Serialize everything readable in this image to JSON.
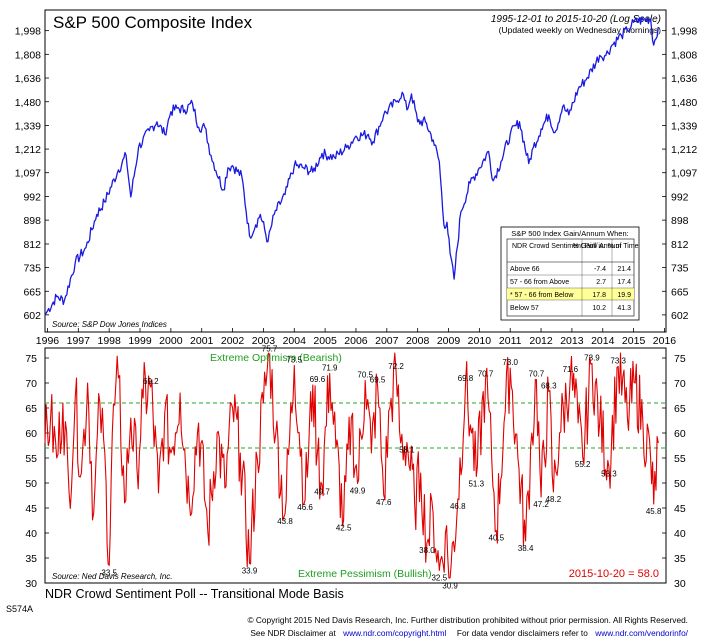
{
  "chart_data": [
    {
      "type": "line",
      "title": "S&P 500 Composite Index",
      "subtitle": "1995-12-01 to 2015-10-20 (Log Scale)",
      "subtitle2": "(Updated weekly on Wednesday mornings)",
      "source": "Source:  S&P Dow Jones Indices",
      "y_scale": "log",
      "ylim": [
        560,
        2180
      ],
      "y_ticks": [
        "602",
        "665",
        "735",
        "812",
        "898",
        "992",
        "1,097",
        "1,212",
        "1,339",
        "1,480",
        "1,636",
        "1,808",
        "1,998"
      ],
      "x_ticks": [
        "1996",
        "1997",
        "1998",
        "1999",
        "2000",
        "2001",
        "2002",
        "2003",
        "2004",
        "2005",
        "2006",
        "2007",
        "2008",
        "2009",
        "2010",
        "2011",
        "2012",
        "2013",
        "2014",
        "2015",
        "2016"
      ],
      "xlim": [
        1995.92,
        2016.05
      ],
      "line_color": "#1a1adf",
      "series": [
        {
          "x": [
            1995.92,
            1996.0,
            1996.3,
            1996.55,
            1996.9,
            1997.25,
            1997.6,
            1997.85,
            1998.3,
            1998.55,
            1998.7,
            1998.95,
            1999.3,
            1999.55,
            1999.8,
            2000.0,
            2000.2,
            2000.45,
            2000.7,
            2000.9,
            2001.1,
            2001.3,
            2001.7,
            2001.85,
            2002.0,
            2002.3,
            2002.55,
            2002.75,
            2002.9,
            2003.15,
            2003.35,
            2003.7,
            2004.0,
            2004.3,
            2004.6,
            2004.9,
            2005.3,
            2005.7,
            2006.0,
            2006.4,
            2006.55,
            2006.9,
            2007.3,
            2007.5,
            2007.65,
            2007.8,
            2008.0,
            2008.25,
            2008.5,
            2008.7,
            2008.85,
            2008.95,
            2009.05,
            2009.18,
            2009.4,
            2009.7,
            2010.0,
            2010.3,
            2010.45,
            2010.7,
            2011.0,
            2011.3,
            2011.6,
            2011.75,
            2012.0,
            2012.25,
            2012.45,
            2012.7,
            2012.9,
            2013.2,
            2013.5,
            2013.9,
            2014.1,
            2014.3,
            2014.6,
            2014.8,
            2015.0,
            2015.3,
            2015.55,
            2015.65,
            2015.8
          ],
          "y": [
            602,
            612,
            650,
            640,
            750,
            800,
            920,
            970,
            1110,
            1180,
            990,
            1220,
            1310,
            1360,
            1290,
            1420,
            1440,
            1430,
            1470,
            1330,
            1330,
            1180,
            1020,
            1120,
            1130,
            1080,
            840,
            880,
            920,
            820,
            920,
            1000,
            1130,
            1120,
            1100,
            1190,
            1170,
            1220,
            1280,
            1290,
            1250,
            1400,
            1480,
            1540,
            1430,
            1530,
            1360,
            1360,
            1260,
            1150,
            880,
            890,
            780,
            700,
            930,
            1050,
            1120,
            1200,
            1060,
            1150,
            1290,
            1360,
            1140,
            1220,
            1320,
            1400,
            1300,
            1450,
            1400,
            1560,
            1640,
            1800,
            1800,
            1880,
            1960,
            2000,
            2070,
            2090,
            2100,
            1880,
            2030
          ]
        }
      ],
      "table": {
        "title": "S&P 500 Index Gain/Annum When:",
        "header": [
          "NDR Crowd Sentiment Poll is:",
          "% Gain/ Annum",
          "% of Time"
        ],
        "rows": [
          [
            "Above 66",
            "-7.4",
            "21.4"
          ],
          [
            "57 - 66 from Above",
            "2.7",
            "17.4"
          ],
          [
            "* 57 - 66 from Below",
            "17.8",
            "19.9"
          ],
          [
            "Below 57",
            "10.2",
            "41.3"
          ]
        ],
        "highlight_row": 2,
        "highlight_color": "#ffff99"
      }
    },
    {
      "type": "line",
      "title": "NDR Crowd Sentiment Poll -- Transitional Mode Basis",
      "source": "Source:  Ned Davis Research, Inc.",
      "ylim": [
        30,
        77
      ],
      "y_ticks": [
        30,
        35,
        40,
        45,
        50,
        55,
        60,
        65,
        70,
        75
      ],
      "xlim": [
        1995.92,
        2016.05
      ],
      "line_color": "#e00000",
      "thresholds": [
        66,
        57
      ],
      "threshold_color": "#22aa22",
      "zone_labels": [
        "Extreme Optimism (Bearish)",
        "Extreme Pessimism (Bullish)"
      ],
      "latest_label": "2015-10-20 = 58.0",
      "annotations": [
        {
          "x": 1999.35,
          "y": 69.2,
          "label": "69.2"
        },
        {
          "x": 1998.0,
          "y": 33.5,
          "label": "33.5"
        },
        {
          "x": 2002.55,
          "y": 33.9,
          "label": "33.9"
        },
        {
          "x": 2003.2,
          "y": 75.7,
          "label": "75.7"
        },
        {
          "x": 2003.7,
          "y": 43.8,
          "label": "43.8"
        },
        {
          "x": 2004.0,
          "y": 73.5,
          "label": "73.5"
        },
        {
          "x": 2004.35,
          "y": 46.6,
          "label": "46.6"
        },
        {
          "x": 2004.75,
          "y": 69.6,
          "label": "69.6"
        },
        {
          "x": 2004.9,
          "y": 49.7,
          "label": "49.7"
        },
        {
          "x": 2005.15,
          "y": 71.9,
          "label": "71.9"
        },
        {
          "x": 2005.6,
          "y": 42.5,
          "label": "42.5"
        },
        {
          "x": 2006.05,
          "y": 49.9,
          "label": "49.9"
        },
        {
          "x": 2006.3,
          "y": 70.5,
          "label": "70.5"
        },
        {
          "x": 2006.7,
          "y": 69.5,
          "label": "69.5"
        },
        {
          "x": 2006.9,
          "y": 47.6,
          "label": "47.6"
        },
        {
          "x": 2007.3,
          "y": 72.2,
          "label": "72.2"
        },
        {
          "x": 2007.65,
          "y": 58.1,
          "label": "58.1"
        },
        {
          "x": 2008.3,
          "y": 38.0,
          "label": "38.0"
        },
        {
          "x": 2008.7,
          "y": 32.5,
          "label": "32.5"
        },
        {
          "x": 2009.05,
          "y": 30.9,
          "label": "30.9"
        },
        {
          "x": 2009.3,
          "y": 46.8,
          "label": "46.8"
        },
        {
          "x": 2009.55,
          "y": 69.8,
          "label": "69.8"
        },
        {
          "x": 2009.9,
          "y": 51.3,
          "label": "51.3"
        },
        {
          "x": 2010.2,
          "y": 70.7,
          "label": "70.7"
        },
        {
          "x": 2010.55,
          "y": 40.5,
          "label": "40.5"
        },
        {
          "x": 2011.0,
          "y": 73.0,
          "label": "73.0"
        },
        {
          "x": 2011.5,
          "y": 38.4,
          "label": "38.4"
        },
        {
          "x": 2011.85,
          "y": 70.7,
          "label": "70.7"
        },
        {
          "x": 2012.0,
          "y": 47.2,
          "label": "47.2"
        },
        {
          "x": 2012.25,
          "y": 68.3,
          "label": "68.3"
        },
        {
          "x": 2012.4,
          "y": 48.2,
          "label": "48.2"
        },
        {
          "x": 2012.95,
          "y": 71.6,
          "label": "71.6"
        },
        {
          "x": 2013.35,
          "y": 55.2,
          "label": "55.2"
        },
        {
          "x": 2013.65,
          "y": 73.9,
          "label": "73.9"
        },
        {
          "x": 2014.2,
          "y": 53.3,
          "label": "53.3"
        },
        {
          "x": 2014.5,
          "y": 73.3,
          "label": "73.3"
        },
        {
          "x": 2015.65,
          "y": 45.8,
          "label": "45.8"
        }
      ],
      "series": [
        {
          "x": [
            1995.92,
            1996.1,
            1996.3,
            1996.5,
            1996.7,
            1996.9,
            1997.1,
            1997.3,
            1997.5,
            1997.7,
            1997.9,
            1998.0,
            1998.1,
            1998.3,
            1998.5,
            1998.7,
            1998.9,
            1999.1,
            1999.35,
            1999.6,
            1999.8,
            2000.0,
            2000.3,
            2000.6,
            2000.9,
            2001.2,
            2001.5,
            2001.75,
            2002.0,
            2002.25,
            2002.55,
            2002.8,
            2003.0,
            2003.2,
            2003.4,
            2003.7,
            2004.0,
            2004.35,
            2004.6,
            2004.75,
            2004.9,
            2005.15,
            2005.35,
            2005.6,
            2005.85,
            2006.05,
            2006.3,
            2006.5,
            2006.7,
            2006.9,
            2007.1,
            2007.3,
            2007.45,
            2007.65,
            2007.9,
            2008.1,
            2008.3,
            2008.5,
            2008.7,
            2008.9,
            2009.05,
            2009.3,
            2009.55,
            2009.75,
            2009.9,
            2010.2,
            2010.4,
            2010.55,
            2010.8,
            2011.0,
            2011.25,
            2011.5,
            2011.7,
            2011.85,
            2012.0,
            2012.25,
            2012.4,
            2012.6,
            2012.95,
            2013.2,
            2013.35,
            2013.65,
            2013.9,
            2014.2,
            2014.5,
            2014.8,
            2015.05,
            2015.3,
            2015.55,
            2015.65,
            2015.8
          ],
          "y": [
            58,
            63,
            55,
            66,
            48,
            67,
            52,
            70,
            44,
            66,
            50,
            33.5,
            60,
            71,
            46,
            63,
            53,
            67,
            69.2,
            48,
            64,
            56,
            68,
            46,
            62,
            40,
            60,
            49,
            65,
            56,
            33.9,
            55,
            66,
            75.7,
            60,
            43.8,
            73.5,
            46.6,
            69.6,
            56,
            49.7,
            71.9,
            57,
            42.5,
            63,
            49.9,
            70.5,
            56,
            69.5,
            47.6,
            65,
            72.2,
            58,
            58.1,
            46,
            52,
            38,
            44,
            32.5,
            40,
            30.9,
            46.8,
            69.8,
            60,
            51.3,
            70.7,
            55,
            40.5,
            62,
            73.0,
            55,
            38.4,
            60,
            70.7,
            47.2,
            68.3,
            48.2,
            60,
            71.6,
            62,
            55.2,
            73.9,
            62,
            53.3,
            73.3,
            63,
            70,
            62,
            55,
            45.8,
            58.0
          ]
        }
      ]
    }
  ],
  "code": "S574A",
  "footer": {
    "copyright": "© Copyright 2015 Ned Davis Research, Inc. Further distribution prohibited without prior permission. All Rights Reserved.",
    "line2_a": "See NDR Disclaimer at",
    "line2_link1": "www.ndr.com/copyright.html",
    "line2_b": "For data vendor disclaimers refer to",
    "line2_link2": "www.ndr.com/vendorinfo/"
  }
}
